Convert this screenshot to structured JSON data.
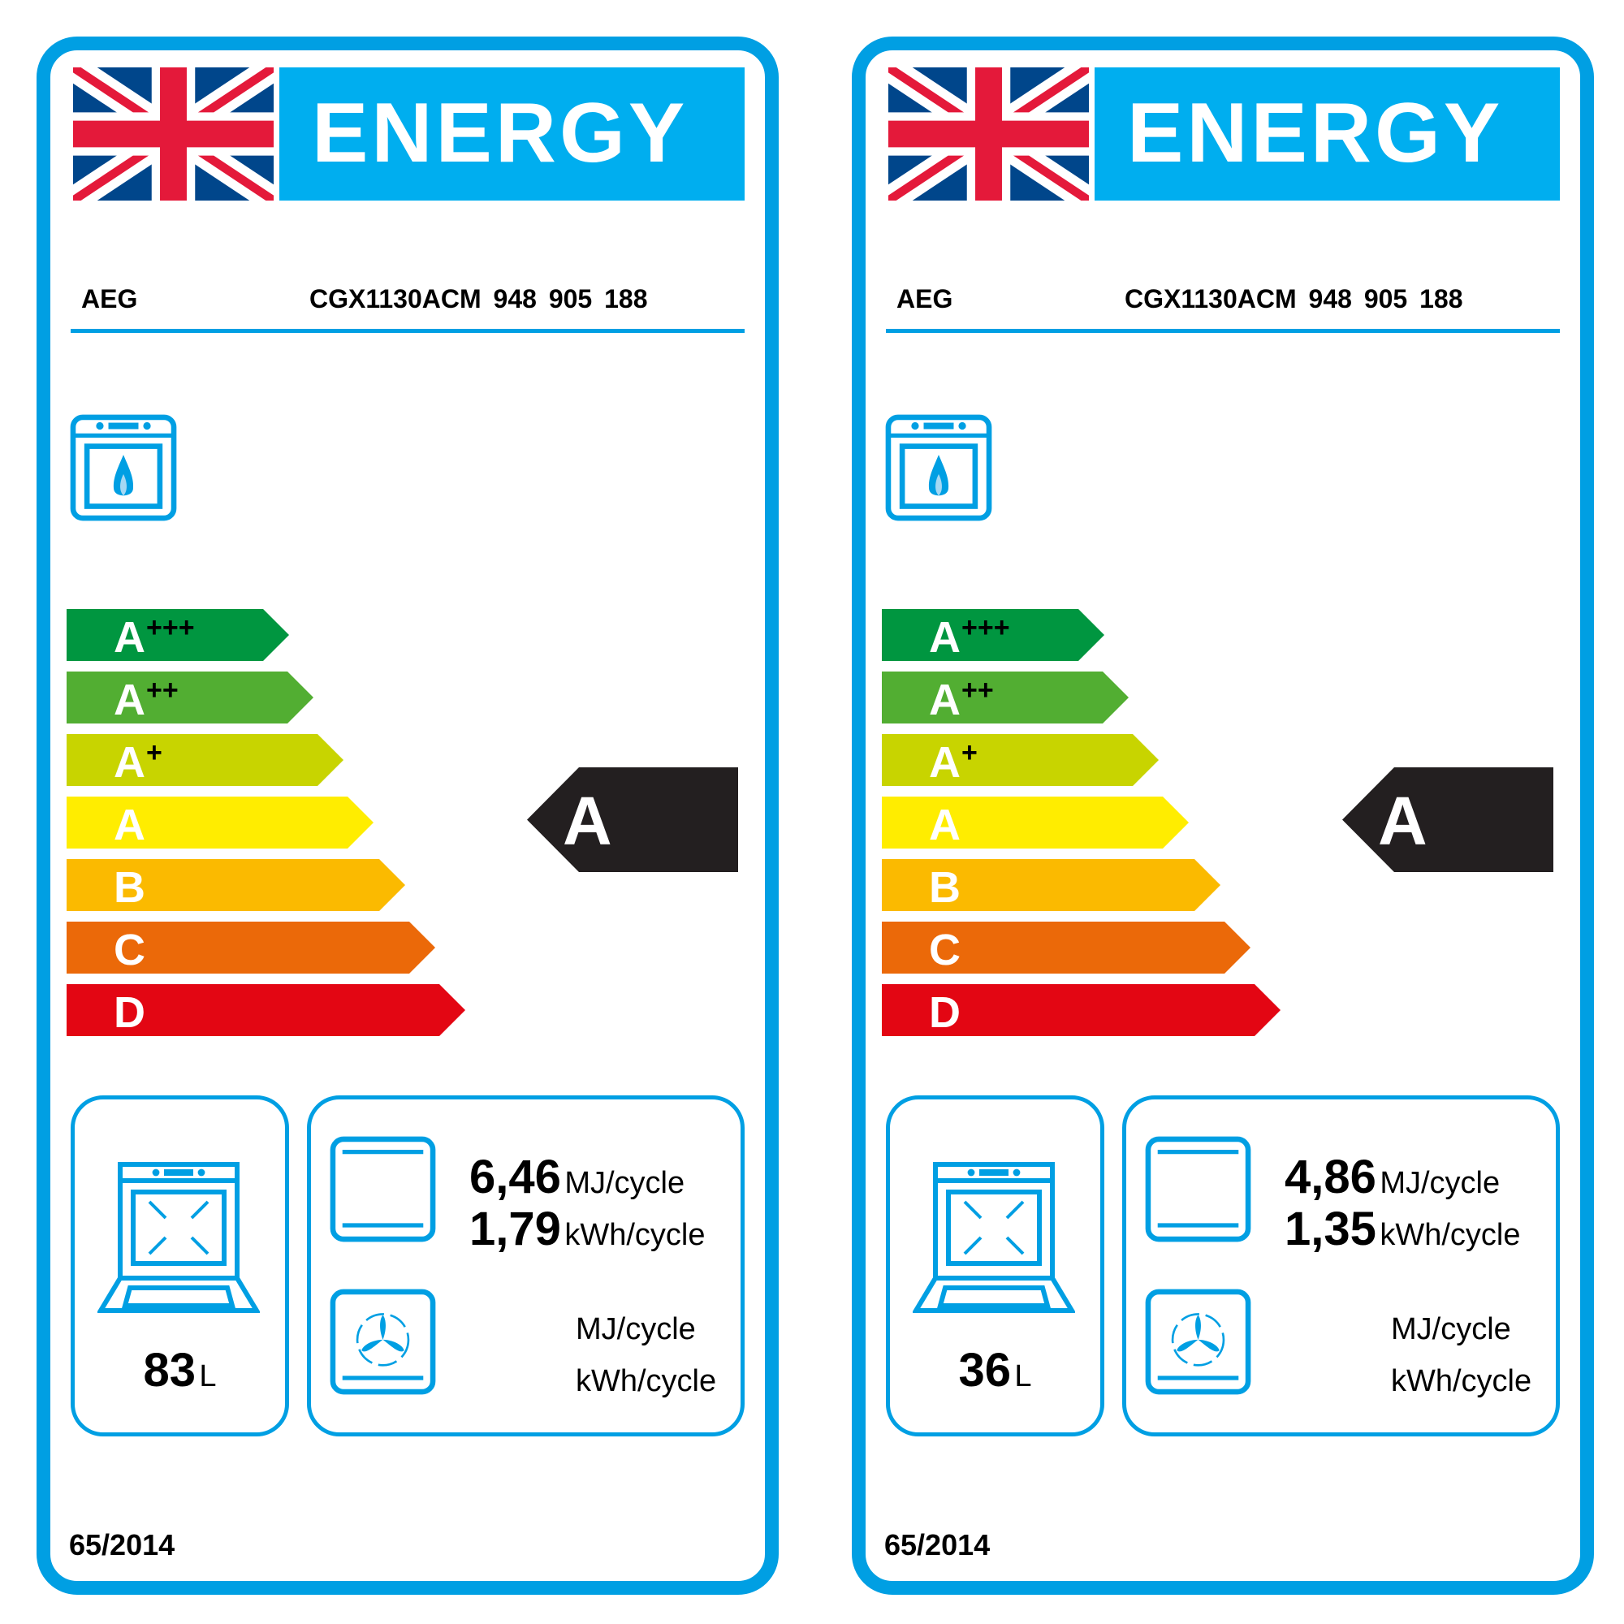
{
  "colors": {
    "frame": "#009fe3",
    "banner": "#00aeef",
    "rating": "#231f20"
  },
  "scale": [
    {
      "label": "A",
      "plus": "+++",
      "color": "#009640"
    },
    {
      "label": "A",
      "plus": "++",
      "color": "#52ae32"
    },
    {
      "label": "A",
      "plus": "+",
      "color": "#c8d400"
    },
    {
      "label": "A",
      "plus": "",
      "color": "#ffed00"
    },
    {
      "label": "B",
      "plus": "",
      "color": "#fbba00"
    },
    {
      "label": "C",
      "plus": "",
      "color": "#eb6909"
    },
    {
      "label": "D",
      "plus": "",
      "color": "#e30613"
    }
  ],
  "labels": [
    {
      "title": "ENERGY",
      "supplier": "AEG",
      "model": "CGX1130ACM  948 905 188",
      "rating": "A",
      "volume": "83",
      "volume_unit": "L",
      "conventional": {
        "mj": "6,46",
        "mj_unit": "MJ/cycle",
        "kwh": "1,79",
        "kwh_unit": "kWh/cycle"
      },
      "fan": {
        "mj_unit": "MJ/cycle",
        "kwh_unit": "kWh/cycle"
      },
      "regulation": "65/2014"
    },
    {
      "title": "ENERGY",
      "supplier": "AEG",
      "model": "CGX1130ACM  948 905 188",
      "rating": "A",
      "volume": "36",
      "volume_unit": "L",
      "conventional": {
        "mj": "4,86",
        "mj_unit": "MJ/cycle",
        "kwh": "1,35",
        "kwh_unit": "kWh/cycle"
      },
      "fan": {
        "mj_unit": "MJ/cycle",
        "kwh_unit": "kWh/cycle"
      },
      "regulation": "65/2014"
    }
  ]
}
